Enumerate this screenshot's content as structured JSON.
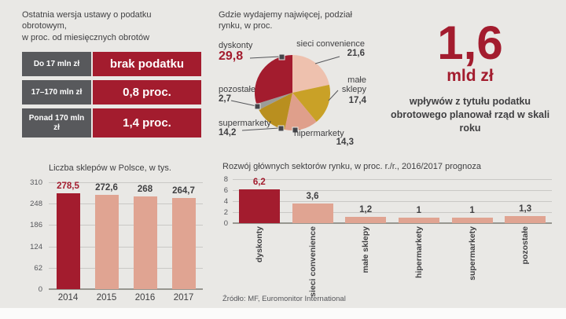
{
  "colors": {
    "background": "#e9e8e5",
    "dark_red": "#a31c2e",
    "salmon": "#e0a492",
    "mustard": "#c9a127",
    "pale_pink": "#eec1ae",
    "gray_box": "#58595c",
    "text_dark": "#3f3f41"
  },
  "tax_table": {
    "title": "Ostatnia wersja ustawy o podatku obrotowym,\nw proc. od miesięcznych obrotów",
    "rows": [
      {
        "label": "Do 17 mln zł",
        "value": "brak podatku"
      },
      {
        "label": "17–170 mln zł",
        "value": "0,8 proc."
      },
      {
        "label": "Ponad 170 mln zł",
        "value": "1,4 proc."
      }
    ]
  },
  "headline": {
    "value": "1,6",
    "unit": "mld zł",
    "description": "wpływów z tytułu podatku obrotowego planował rząd w skali roku"
  },
  "source": "Źródło: MF, Euromonitor International",
  "chart_data": [
    {
      "id": "market_share_pie",
      "type": "pie",
      "title": "Gdzie wydajemy najwięcej, podział rynku, w proc.",
      "start_angle_deg": 0,
      "direction": "clockwise",
      "slices": [
        {
          "label": "sieci convenience",
          "value": 21.6,
          "display": "21,6",
          "color": "#eec1ae"
        },
        {
          "label": "małe sklepy",
          "value": 17.4,
          "display": "17,4",
          "color": "#c9a127"
        },
        {
          "label": "hipermarkety",
          "value": 14.3,
          "display": "14,3",
          "color": "#df9f8b"
        },
        {
          "label": "supermarkety",
          "value": 14.2,
          "display": "14,2",
          "color": "#b98f1f"
        },
        {
          "label": "pozostałe",
          "value": 2.7,
          "display": "2,7",
          "color": "#9c9c98"
        },
        {
          "label": "dyskonty",
          "value": 29.8,
          "display": "29,8",
          "color": "#a31c2e"
        }
      ]
    },
    {
      "id": "shops_in_poland",
      "type": "bar",
      "title": "Liczba sklepów w Polsce, w tys.",
      "categories": [
        "2014",
        "2015",
        "2016",
        "2017"
      ],
      "values": [
        278.5,
        272.6,
        268,
        264.7
      ],
      "value_labels": [
        "278,5",
        "272,6",
        "268",
        "264,7"
      ],
      "value_label_colors": [
        "#a31c2e",
        "#3f3f41",
        "#3f3f41",
        "#3f3f41"
      ],
      "bar_colors": [
        "#a31c2e",
        "#e0a492",
        "#e0a492",
        "#e0a492"
      ],
      "ylim": [
        0,
        310
      ],
      "yticks": [
        310,
        248,
        186,
        124,
        62,
        0
      ],
      "grid": true,
      "legend": false
    },
    {
      "id": "sector_growth",
      "type": "bar",
      "title": "Rozwój głównych sektorów rynku, w proc. r./r., 2016/2017 prognoza",
      "categories": [
        "dyskonty",
        "sieci convenience",
        "małe sklepy",
        "hipermarkety",
        "supermarkety",
        "pozostałe"
      ],
      "values": [
        6.2,
        3.6,
        1.2,
        1,
        1,
        1.3
      ],
      "value_labels": [
        "6,2",
        "3,6",
        "1,2",
        "1",
        "1",
        "1,3"
      ],
      "value_label_colors": [
        "#a31c2e",
        "#3f3f41",
        "#3f3f41",
        "#3f3f41",
        "#3f3f41",
        "#3f3f41"
      ],
      "bar_colors": [
        "#a31c2e",
        "#e0a492",
        "#e0a492",
        "#e0a492",
        "#e0a492",
        "#e0a492"
      ],
      "ylim": [
        0,
        8
      ],
      "yticks": [
        8,
        6,
        4,
        2,
        0
      ],
      "grid": true,
      "legend": false
    }
  ]
}
